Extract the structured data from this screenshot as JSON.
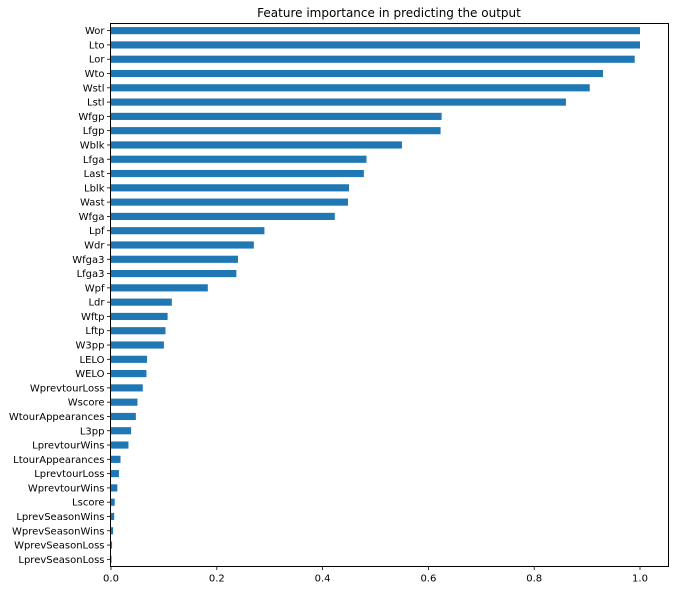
{
  "chart_data": {
    "type": "bar",
    "orientation": "horizontal",
    "title": "Feature importance in predicting the output",
    "xlabel": "",
    "ylabel": "",
    "xlim": [
      0,
      1.05
    ],
    "xticks": [
      0.0,
      0.2,
      0.4,
      0.6,
      0.8,
      1.0
    ],
    "xtick_labels": [
      "0.0",
      "0.2",
      "0.4",
      "0.6",
      "0.8",
      "1.0"
    ],
    "grid": false,
    "bar_color": "#1f77b4",
    "categories": [
      "Wor",
      "Lto",
      "Lor",
      "Wto",
      "Wstl",
      "Lstl",
      "Wfgp",
      "Lfgp",
      "Wblk",
      "Lfga",
      "Last",
      "Lblk",
      "Wast",
      "Wfga",
      "Lpf",
      "Wdr",
      "Wfga3",
      "Lfga3",
      "Wpf",
      "Ldr",
      "Wftp",
      "Lftp",
      "W3pp",
      "LELO",
      "WELO",
      "WprevtourLoss",
      "Wscore",
      "WtourAppearances",
      "L3pp",
      "LprevtourWins",
      "LtourAppearances",
      "LprevtourLoss",
      "WprevtourWins",
      "Lscore",
      "LprevSeasonWins",
      "WprevSeasonWins",
      "WprevSeasonLoss",
      "LprevSeasonLoss"
    ],
    "values": [
      1.0,
      1.0,
      0.99,
      0.93,
      0.905,
      0.86,
      0.625,
      0.623,
      0.55,
      0.483,
      0.478,
      0.45,
      0.448,
      0.423,
      0.29,
      0.27,
      0.24,
      0.237,
      0.183,
      0.115,
      0.107,
      0.103,
      0.1,
      0.068,
      0.067,
      0.06,
      0.05,
      0.047,
      0.038,
      0.033,
      0.018,
      0.015,
      0.012,
      0.007,
      0.006,
      0.004,
      0.002,
      0.001
    ]
  }
}
